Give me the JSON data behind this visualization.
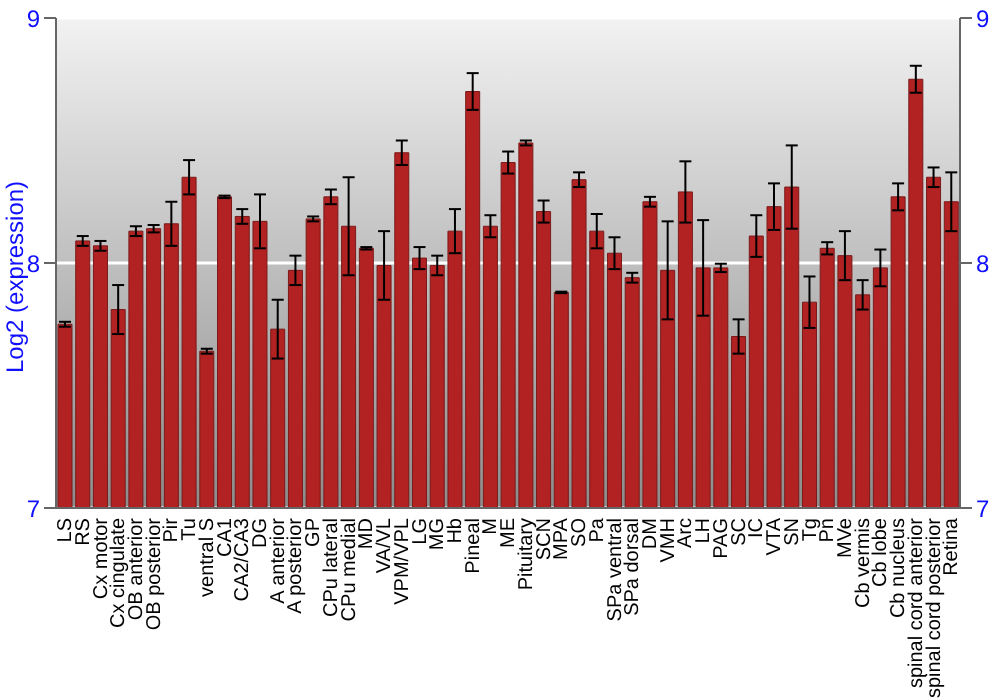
{
  "chart_data": {
    "type": "bar",
    "ylabel": "Log2 (expression)",
    "categories": [
      "LS",
      "RS",
      "Cx motor",
      "Cx cingulate",
      "OB anterior",
      "OB posterior",
      "Pir",
      "Tu",
      "ventral S",
      "CA1",
      "CA2/CA3",
      "DG",
      "A anterior",
      "A posterior",
      "GP",
      "CPu lateral",
      "CPu medial",
      "MD",
      "VA/VL",
      "VPM/VPL",
      "LG",
      "MG",
      "Hb",
      "Pineal",
      "M",
      "ME",
      "Pituitary",
      "SCN",
      "MPA",
      "SO",
      "Pa",
      "SPa ventral",
      "SPa dorsal",
      "DM",
      "VMH",
      "Arc",
      "LH",
      "PAG",
      "SC",
      "IC",
      "VTA",
      "SN",
      "Tg",
      "Pn",
      "MVe",
      "Cb vermis",
      "Cb lobe",
      "Cb nucleus",
      "spinal cord anterior",
      "spinal cord posterior",
      "Retina"
    ],
    "values": [
      7.75,
      8.09,
      8.07,
      7.81,
      8.13,
      8.14,
      8.16,
      8.35,
      7.64,
      8.27,
      8.19,
      8.17,
      7.73,
      7.97,
      8.18,
      8.27,
      8.15,
      8.06,
      7.99,
      8.45,
      8.02,
      7.99,
      8.13,
      8.7,
      8.15,
      8.41,
      8.49,
      8.21,
      7.88,
      8.34,
      8.13,
      8.04,
      7.94,
      8.25,
      7.97,
      8.29,
      7.98,
      7.98,
      7.7,
      8.11,
      8.23,
      8.31,
      7.84,
      8.06,
      8.03,
      7.87,
      7.98,
      8.27,
      8.75,
      8.35,
      8.25
    ],
    "errors": [
      0.01,
      0.02,
      0.02,
      0.1,
      0.02,
      0.015,
      0.09,
      0.07,
      0.01,
      0.005,
      0.03,
      0.11,
      0.12,
      0.06,
      0.01,
      0.03,
      0.2,
      0.005,
      0.14,
      0.05,
      0.045,
      0.04,
      0.09,
      0.075,
      0.045,
      0.045,
      0.01,
      0.045,
      0.003,
      0.03,
      0.07,
      0.065,
      0.02,
      0.02,
      0.2,
      0.125,
      0.195,
      0.017,
      0.07,
      0.085,
      0.095,
      0.17,
      0.105,
      0.025,
      0.1,
      0.06,
      0.075,
      0.055,
      0.055,
      0.04,
      0.12
    ],
    "color": "#b22222",
    "ylim": [
      7,
      9
    ],
    "yticks": [
      7,
      8,
      9
    ],
    "y2lim": [
      7,
      9
    ],
    "y2ticks": [
      7,
      8,
      9
    ],
    "grid": "y"
  }
}
